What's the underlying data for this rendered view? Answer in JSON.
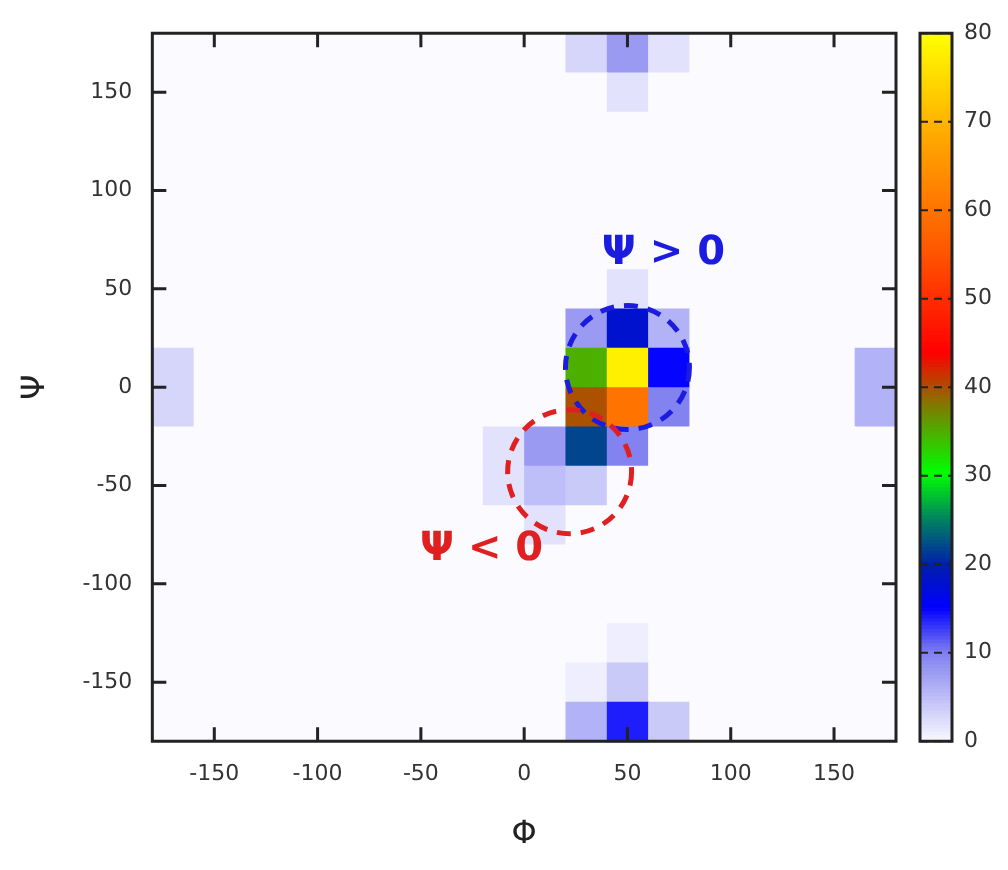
{
  "chart_data": {
    "type": "heatmap",
    "xlabel": "Φ",
    "ylabel": "Ψ",
    "x": [
      -170,
      -150,
      -130,
      -110,
      -90,
      -70,
      -50,
      -30,
      -10,
      10,
      30,
      50,
      70,
      90,
      110,
      130,
      150,
      170
    ],
    "xlim": [
      -180,
      180
    ],
    "xticks": [
      -150,
      -100,
      -50,
      0,
      50,
      100,
      150
    ],
    "ylim": [
      -180,
      180
    ],
    "yticks": [
      -150,
      -100,
      -50,
      0,
      50,
      100,
      150
    ],
    "clim": [
      0,
      80
    ],
    "cticks": [
      0,
      10,
      20,
      30,
      40,
      50,
      60,
      70,
      80
    ],
    "cells": [
      [
        0,
        0,
        0,
        0,
        0,
        0,
        0,
        0,
        0,
        0,
        3,
        8,
        2,
        0,
        0,
        0,
        0,
        0
      ],
      [
        0,
        0,
        0,
        0,
        0,
        0,
        0,
        0,
        0,
        0,
        0,
        2,
        0,
        0,
        0,
        0,
        0,
        0
      ],
      [
        0,
        0,
        0,
        0,
        0,
        0,
        0,
        0,
        0,
        0,
        0,
        0,
        0,
        0,
        0,
        0,
        0,
        0
      ],
      [
        0,
        0,
        0,
        0,
        0,
        0,
        0,
        0,
        0,
        0,
        0,
        0,
        0,
        0,
        0,
        0,
        0,
        0
      ],
      [
        0,
        0,
        0,
        0,
        0,
        0,
        0,
        0,
        0,
        0,
        0,
        0,
        0,
        0,
        0,
        0,
        0,
        0
      ],
      [
        0,
        0,
        0,
        0,
        0,
        0,
        0,
        0,
        0,
        0,
        0,
        0,
        0,
        0,
        0,
        0,
        0,
        0
      ],
      [
        0,
        0,
        0,
        0,
        0,
        0,
        0,
        0,
        0,
        0,
        0,
        2,
        0,
        0,
        0,
        0,
        0,
        0
      ],
      [
        0,
        0,
        0,
        0,
        0,
        0,
        0,
        0,
        0,
        0,
        8,
        18,
        6,
        0,
        0,
        0,
        0,
        0
      ],
      [
        3,
        0,
        0,
        0,
        0,
        0,
        0,
        0,
        0,
        0,
        35,
        78,
        15,
        0,
        0,
        0,
        0,
        6
      ],
      [
        3,
        0,
        0,
        0,
        0,
        0,
        0,
        0,
        0,
        0,
        40,
        60,
        10,
        0,
        0,
        0,
        0,
        6
      ],
      [
        0,
        0,
        0,
        0,
        0,
        0,
        0,
        0,
        2,
        8,
        22,
        10,
        0,
        0,
        0,
        0,
        0,
        0
      ],
      [
        0,
        0,
        0,
        0,
        0,
        0,
        0,
        0,
        2,
        5,
        4,
        0,
        0,
        0,
        0,
        0,
        0,
        0
      ],
      [
        0,
        0,
        0,
        0,
        0,
        0,
        0,
        0,
        0,
        2,
        0,
        0,
        0,
        0,
        0,
        0,
        0,
        0
      ],
      [
        0,
        0,
        0,
        0,
        0,
        0,
        0,
        0,
        0,
        0,
        0,
        0,
        0,
        0,
        0,
        0,
        0,
        0
      ],
      [
        0,
        0,
        0,
        0,
        0,
        0,
        0,
        0,
        0,
        0,
        0,
        0,
        0,
        0,
        0,
        0,
        0,
        0
      ],
      [
        0,
        0,
        0,
        0,
        0,
        0,
        0,
        0,
        0,
        0,
        0,
        1,
        0,
        0,
        0,
        0,
        0,
        0
      ],
      [
        0,
        0,
        0,
        0,
        0,
        0,
        0,
        0,
        0,
        0,
        1,
        4,
        0,
        0,
        0,
        0,
        0,
        0
      ],
      [
        0,
        0,
        0,
        0,
        0,
        0,
        0,
        0,
        0,
        0,
        6,
        14,
        4,
        0,
        0,
        0,
        0,
        0
      ]
    ],
    "annotations": [
      "Ψ > 0",
      "Ψ < 0"
    ]
  }
}
